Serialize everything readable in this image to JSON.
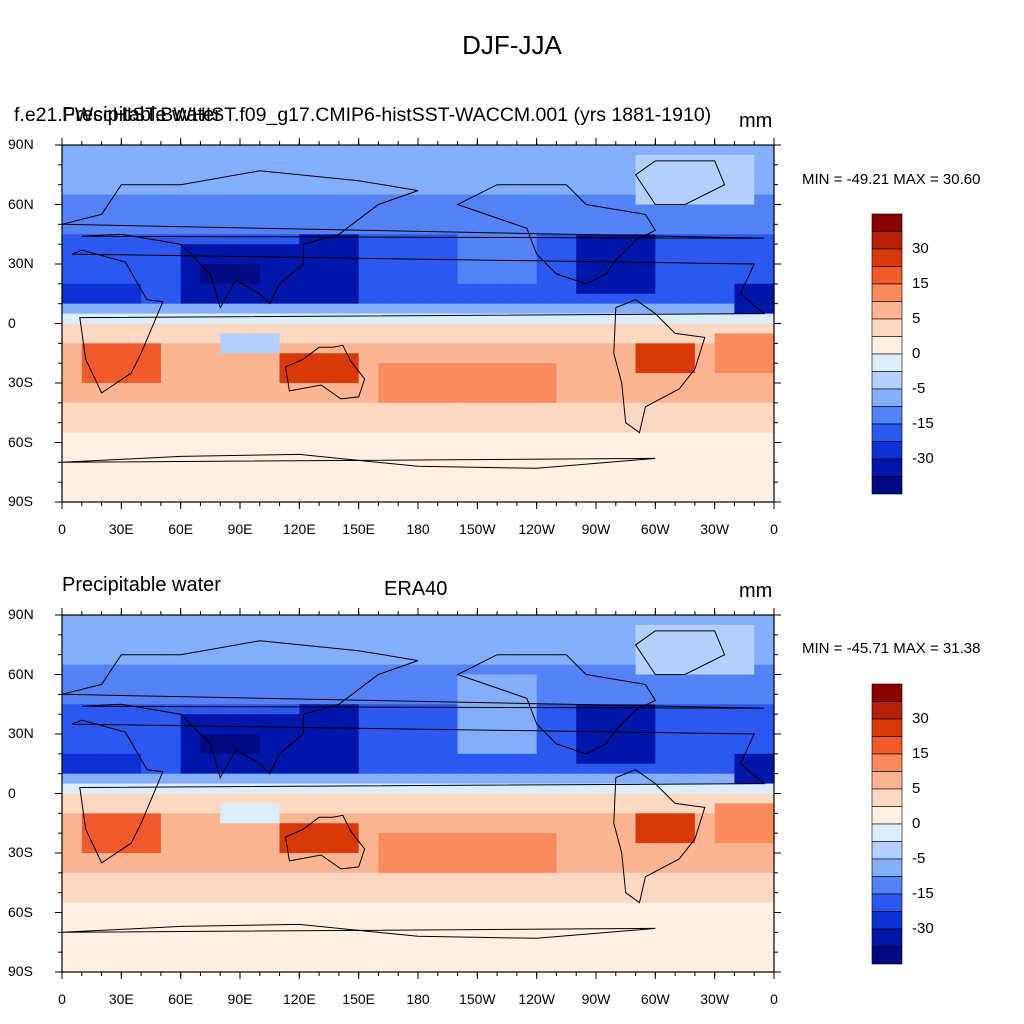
{
  "figure": {
    "title": "DJF-JJA"
  },
  "panels": [
    {
      "id": "model",
      "left_title": "Precipitable water",
      "center_title": "f.e21.FWscHIST.BWHIST.f09_g17.CMIP6-histSST-WACCM.001 (yrs 1881-1910)",
      "right_title": "mm",
      "minmax": "MIN = -49.21 MAX =  30.60"
    },
    {
      "id": "obs",
      "left_title": "Precipitable water",
      "center_title": "ERA40",
      "right_title": "mm",
      "minmax": "MIN = -45.71 MAX =  31.38"
    }
  ],
  "axes": {
    "lon_labels": [
      "0",
      "30E",
      "60E",
      "90E",
      "120E",
      "150E",
      "180",
      "150W",
      "120W",
      "90W",
      "60W",
      "30W",
      "0"
    ],
    "lat_labels": [
      "90N",
      "60N",
      "30N",
      "0",
      "30S",
      "60S",
      "90S"
    ]
  },
  "colorbar": {
    "labels": [
      "30",
      "15",
      "5",
      "0",
      "-5",
      "-15",
      "-30"
    ],
    "colors": [
      "#8b0000",
      "#b51f06",
      "#d93808",
      "#f25a2c",
      "#f98b5c",
      "#fcb593",
      "#fdd9c4",
      "#fff0e5",
      "#dceefe",
      "#b3d1fc",
      "#85aefb",
      "#5483f7",
      "#2a58f0",
      "#0d31d4",
      "#0016a8",
      "#000a82"
    ]
  },
  "chart_data": [
    {
      "type": "heatmap",
      "title": "Precipitable water — f.e21.FWscHIST.BWHIST.f09_g17.CMIP6-histSST-WACCM.001 (yrs 1881-1910)",
      "units": "mm",
      "x": "longitude 0 to 360",
      "y": "latitude -90 to 90",
      "min": -49.21,
      "max": 30.6,
      "levels": [
        -40,
        -30,
        -20,
        -15,
        -10,
        -5,
        -2,
        0,
        2,
        5,
        10,
        15,
        20,
        30,
        40
      ]
    },
    {
      "type": "heatmap",
      "title": "Precipitable water — ERA40",
      "units": "mm",
      "x": "longitude 0 to 360",
      "y": "latitude -90 to 90",
      "min": -45.71,
      "max": 31.38,
      "levels": [
        -40,
        -30,
        -20,
        -15,
        -10,
        -5,
        -2,
        0,
        2,
        5,
        10,
        15,
        20,
        30,
        40
      ]
    }
  ]
}
